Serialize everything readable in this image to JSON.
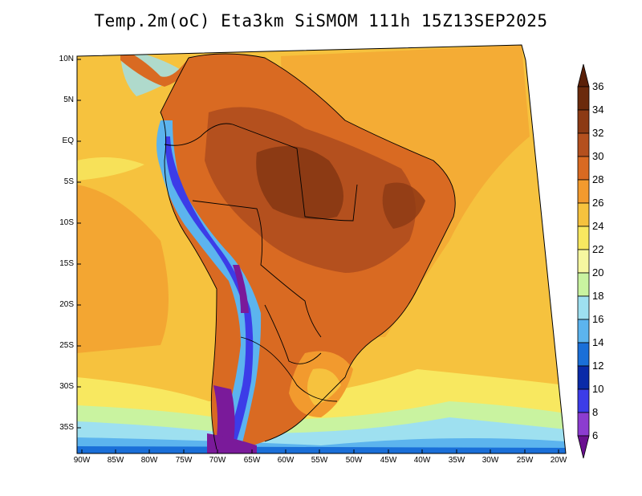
{
  "title": "Temp.2m(oC) Eta3km SiSMOM 111h 15Z13SEP2025",
  "lat_ticks": [
    "10N",
    "5N",
    "EQ",
    "5S",
    "10S",
    "15S",
    "20S",
    "25S",
    "30S",
    "35S"
  ],
  "lon_ticks": [
    "90W",
    "85W",
    "80W",
    "75W",
    "70W",
    "65W",
    "60W",
    "55W",
    "50W",
    "45W",
    "40W",
    "35W",
    "30W",
    "25W",
    "20W"
  ],
  "colorbar": {
    "labels": [
      "36",
      "34",
      "32",
      "30",
      "28",
      "26",
      "24",
      "22",
      "20",
      "18",
      "16",
      "14",
      "12",
      "10",
      "8",
      "6"
    ],
    "colors": [
      "#6b2a0c",
      "#8c3a14",
      "#b4501e",
      "#d96a22",
      "#f29a2e",
      "#f6c23e",
      "#f8e860",
      "#f6f7a0",
      "#c9f3a0",
      "#9ee0f0",
      "#5cb4ee",
      "#1a6fd8",
      "#0a2aa8",
      "#3c3ce8",
      "#8c3cd0",
      "#7a1a9a"
    ],
    "top_arrow_color": "#5a2008",
    "bottom_arrow_color": "#6a1090"
  },
  "map_colors": {
    "ocean_warm": "#f6c23e",
    "ocean_hot": "#f29a2e",
    "land_hot": "#d96a22",
    "land_very_hot": "#b4501e",
    "land_core": "#8c3a14",
    "andes_cold": "#5cb4ee",
    "andes_colder": "#3c3ce8",
    "andes_coldest": "#7a1a9a",
    "south_cool": "#c9f3a0",
    "south_cold": "#9ee0f0",
    "pale_yellow": "#f8e860"
  }
}
